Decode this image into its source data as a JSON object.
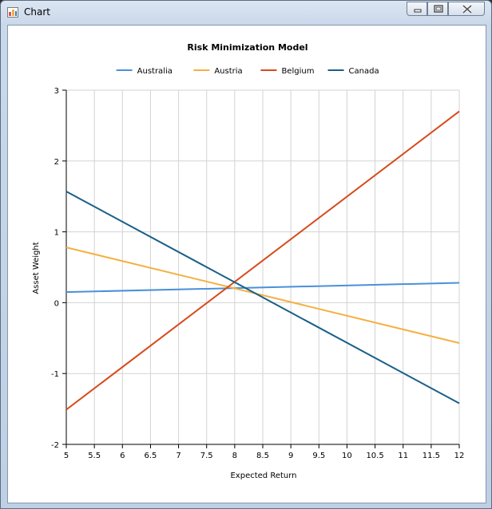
{
  "window": {
    "title": "Chart",
    "icons": {
      "app": "chart-app-icon",
      "minimize": "minimize-icon",
      "maximize": "maximize-icon",
      "close": "close-icon"
    }
  },
  "chart_data": {
    "type": "line",
    "title": "Risk Minimization Model",
    "xlabel": "Expected Return",
    "ylabel": "Asset Weight",
    "xlim": [
      5,
      12
    ],
    "ylim": [
      -2,
      3
    ],
    "x_ticks": [
      "5",
      "5.5",
      "6",
      "6.5",
      "7",
      "7.5",
      "8",
      "8.5",
      "9",
      "9.5",
      "10",
      "10.5",
      "11",
      "11.5",
      "12"
    ],
    "y_ticks": [
      "3",
      "2",
      "1",
      "0",
      "-1",
      "-2"
    ],
    "grid": true,
    "legend_position": "top",
    "x": [
      5,
      12
    ],
    "series": [
      {
        "name": "Australia",
        "color": "#4a90d9",
        "values": [
          0.15,
          0.28
        ]
      },
      {
        "name": "Austria",
        "color": "#f5b041",
        "values": [
          0.78,
          -0.57
        ]
      },
      {
        "name": "Belgium",
        "color": "#d64b1c",
        "values": [
          -1.51,
          2.7
        ]
      },
      {
        "name": "Canada",
        "color": "#1b5f88",
        "values": [
          1.57,
          -1.42
        ]
      }
    ]
  }
}
